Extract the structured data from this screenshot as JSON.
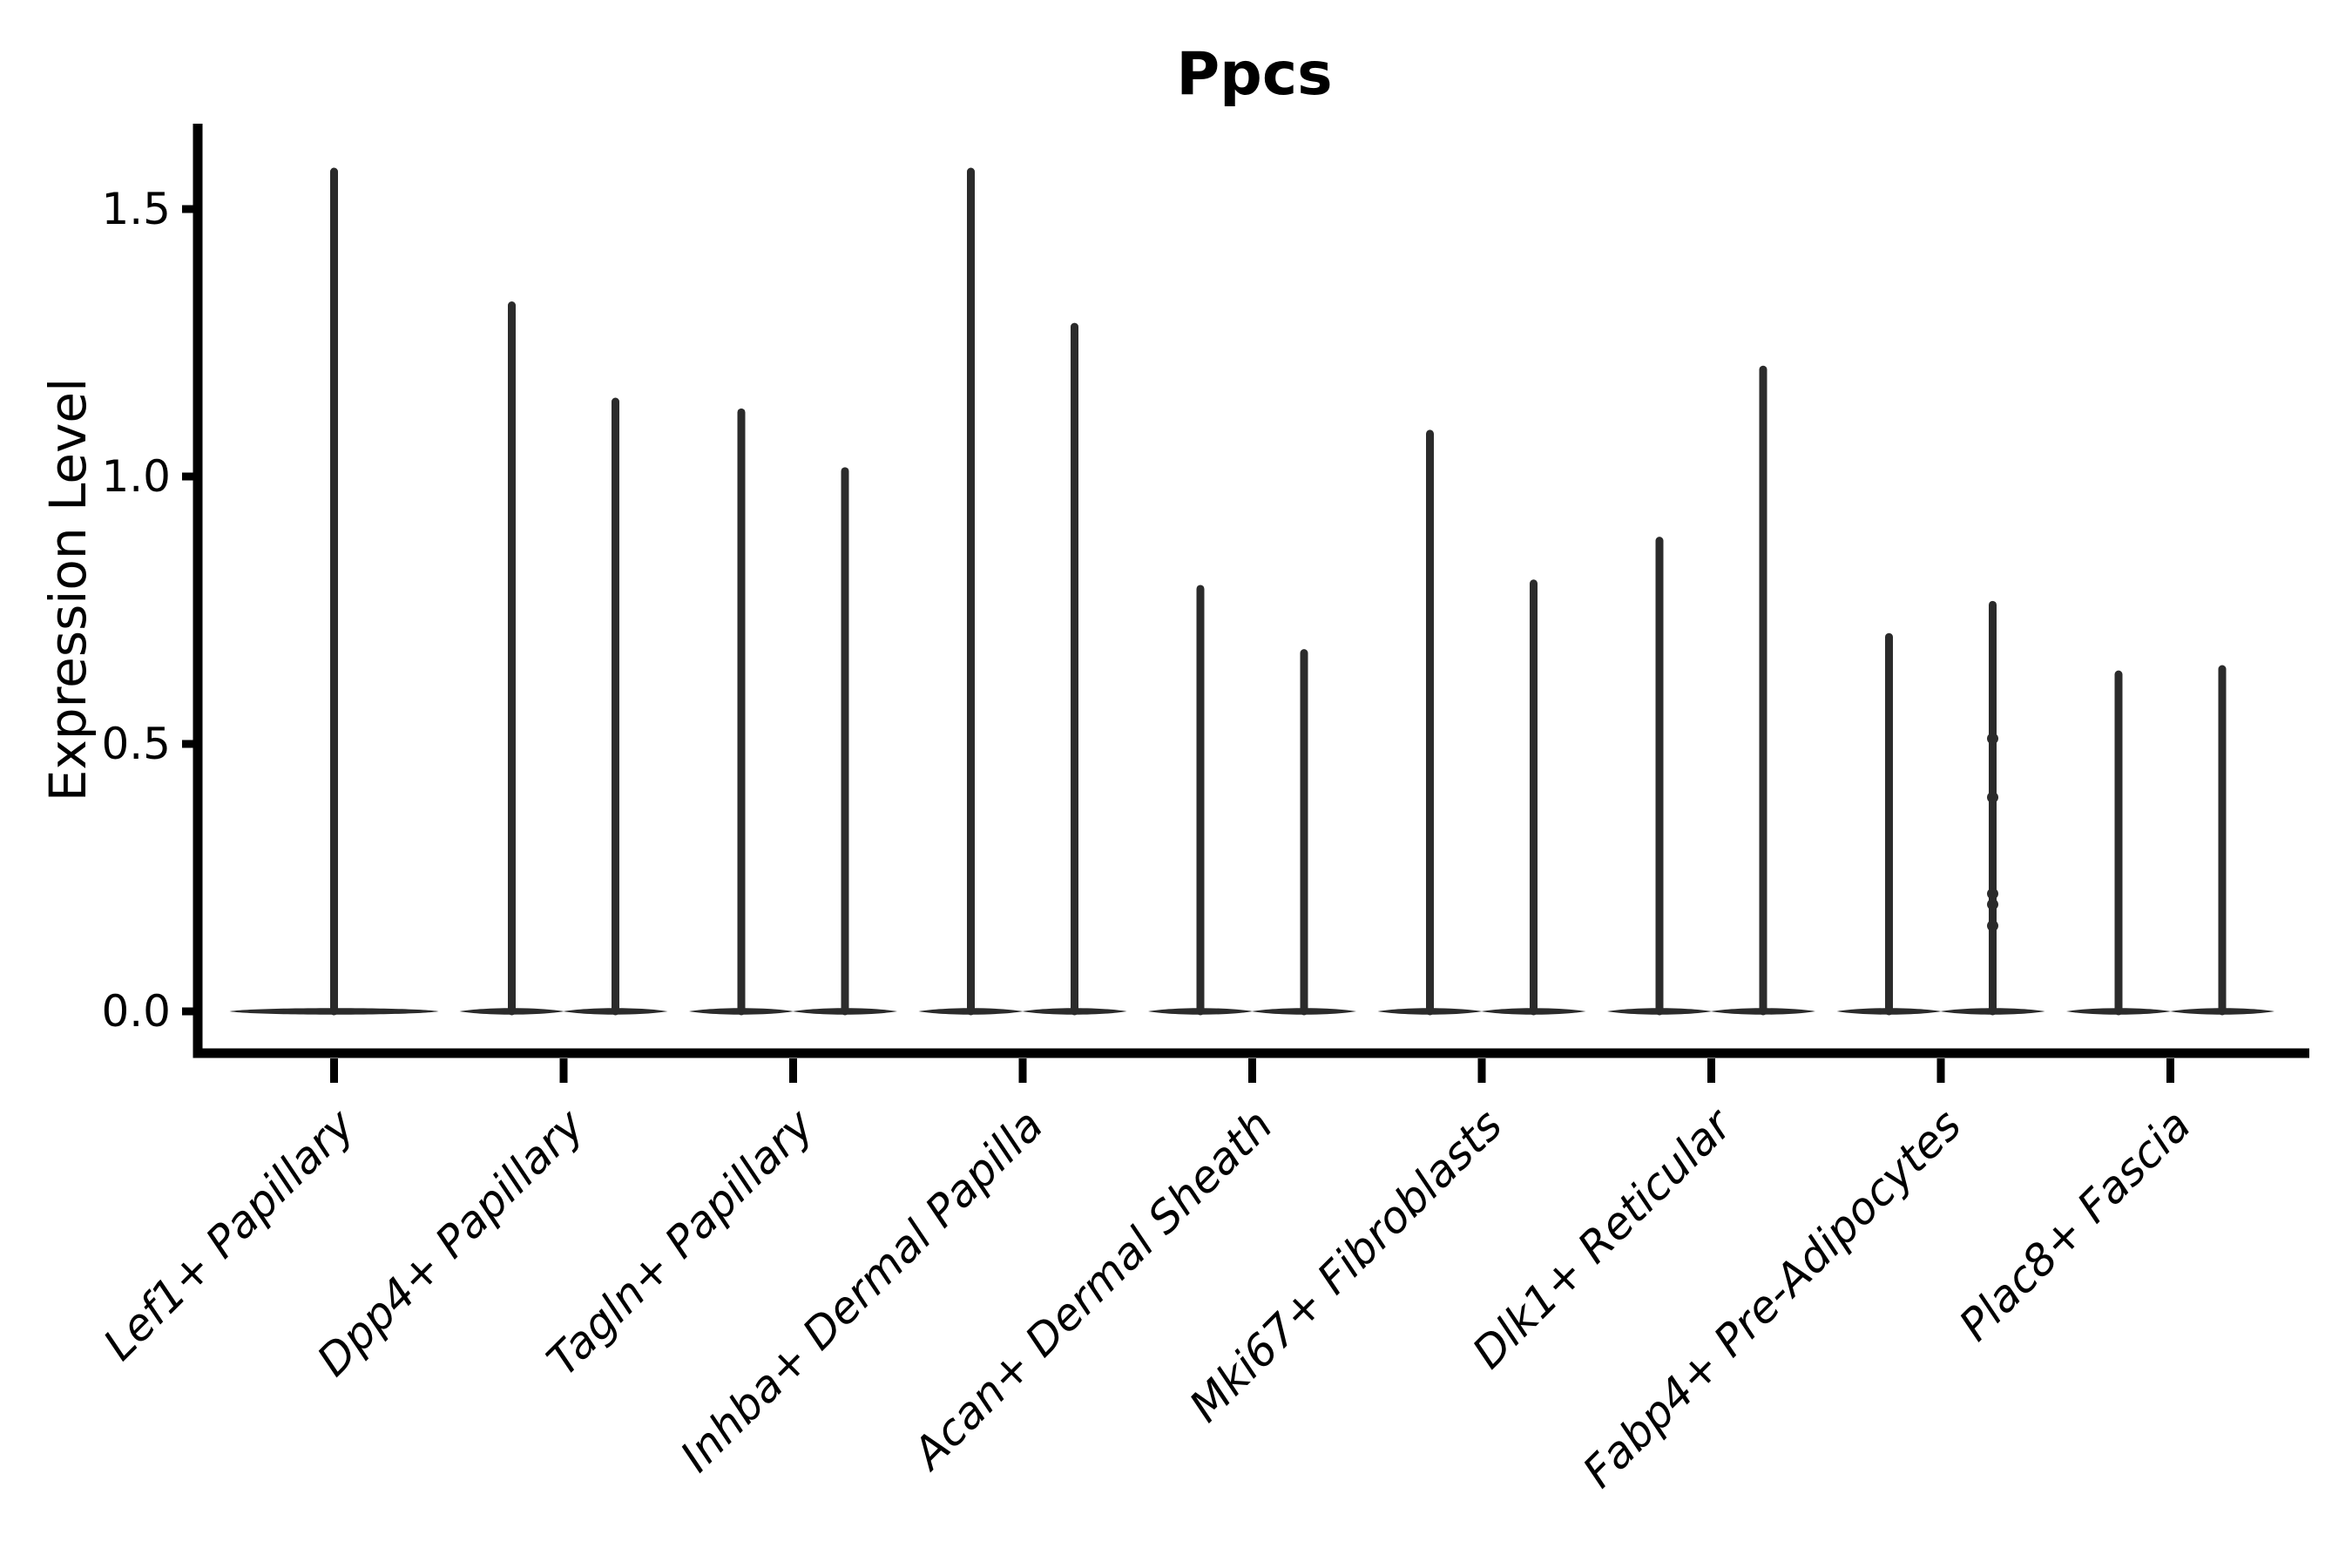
{
  "chart_data": {
    "type": "violin",
    "title": "Ppcs",
    "ylabel": "Expression Level",
    "yticks": [
      {
        "value": 0.0,
        "label": "0.0"
      },
      {
        "value": 0.5,
        "label": "0.5"
      },
      {
        "value": 1.0,
        "label": "1.0"
      },
      {
        "value": 1.5,
        "label": "1.5"
      }
    ],
    "ylim": [
      -0.08,
      1.66
    ],
    "x_label_rotation_deg": 45,
    "x_label_style": "italic",
    "legend": "none",
    "grid": false,
    "categories": [
      "Lef1+ Papillary",
      "Dpp4+ Papillary",
      "Tagln+ Papillary",
      "Inhba+ Dermal Papilla",
      "Acan+ Dermal Sheath",
      "Mki67+ Fibroblasts",
      "Dlk1+ Reticular",
      "Fabp4+ Pre-Adipocytes",
      "Plac8+ Fascia"
    ],
    "series": [
      {
        "category": "Lef1+ Papillary",
        "violins": [
          {
            "side": "single",
            "peak": 1.57,
            "dots": []
          }
        ]
      },
      {
        "category": "Dpp4+ Papillary",
        "violins": [
          {
            "side": "left",
            "peak": 1.32,
            "dots": []
          },
          {
            "side": "right",
            "peak": 1.14,
            "dots": []
          }
        ]
      },
      {
        "category": "Tagln+ Papillary",
        "violins": [
          {
            "side": "left",
            "peak": 1.12,
            "dots": []
          },
          {
            "side": "right",
            "peak": 1.01,
            "dots": []
          }
        ]
      },
      {
        "category": "Inhba+ Dermal Papilla",
        "violins": [
          {
            "side": "left",
            "peak": 1.57,
            "dots": []
          },
          {
            "side": "right",
            "peak": 1.28,
            "dots": []
          }
        ]
      },
      {
        "category": "Acan+ Dermal Sheath",
        "violins": [
          {
            "side": "left",
            "peak": 0.79,
            "dots": []
          },
          {
            "side": "right",
            "peak": 0.67,
            "dots": []
          }
        ]
      },
      {
        "category": "Mki67+ Fibroblasts",
        "violins": [
          {
            "side": "left",
            "peak": 1.08,
            "dots": []
          },
          {
            "side": "right",
            "peak": 0.8,
            "dots": []
          }
        ]
      },
      {
        "category": "Dlk1+ Reticular",
        "violins": [
          {
            "side": "left",
            "peak": 0.88,
            "dots": []
          },
          {
            "side": "right",
            "peak": 1.2,
            "dots": []
          }
        ]
      },
      {
        "category": "Fabp4+ Pre-Adipocytes",
        "violins": [
          {
            "side": "left",
            "peak": 0.7,
            "dots": []
          },
          {
            "side": "right",
            "peak": 0.76,
            "dots": [
              0.51,
              0.4,
              0.22,
              0.2,
              0.16
            ]
          }
        ]
      },
      {
        "category": "Plac8+ Fascia",
        "violins": [
          {
            "side": "left",
            "peak": 0.63,
            "dots": []
          },
          {
            "side": "right",
            "peak": 0.64,
            "dots": []
          }
        ]
      }
    ],
    "colors": {
      "violin": "#2b2b2b",
      "axis": "#000000",
      "text": "#000000",
      "background": "#ffffff"
    }
  }
}
